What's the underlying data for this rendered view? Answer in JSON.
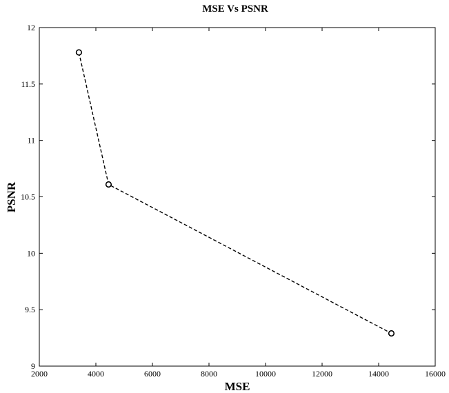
{
  "chart_data": {
    "type": "line",
    "title": "MSE Vs PSNR",
    "xlabel": "MSE",
    "ylabel": "PSNR",
    "xlim": [
      2000,
      16000
    ],
    "ylim": [
      9,
      12
    ],
    "xticks": [
      2000,
      4000,
      6000,
      8000,
      10000,
      12000,
      14000,
      16000
    ],
    "yticks": [
      9,
      9.5,
      10,
      10.5,
      11,
      11.5,
      12
    ],
    "xtick_labels": [
      "2000",
      "4000",
      "6000",
      "8000",
      "10000",
      "12000",
      "14000",
      "16000"
    ],
    "ytick_labels": [
      "9",
      "9.5",
      "10",
      "10.5",
      "11",
      "11.5",
      "12"
    ],
    "grid": false,
    "legend": "none",
    "series": [
      {
        "x": [
          3400,
          4450,
          14450
        ],
        "y": [
          11.78,
          10.61,
          9.29
        ],
        "line_style": "dashed",
        "marker": "circle",
        "color": "#000000"
      }
    ]
  }
}
